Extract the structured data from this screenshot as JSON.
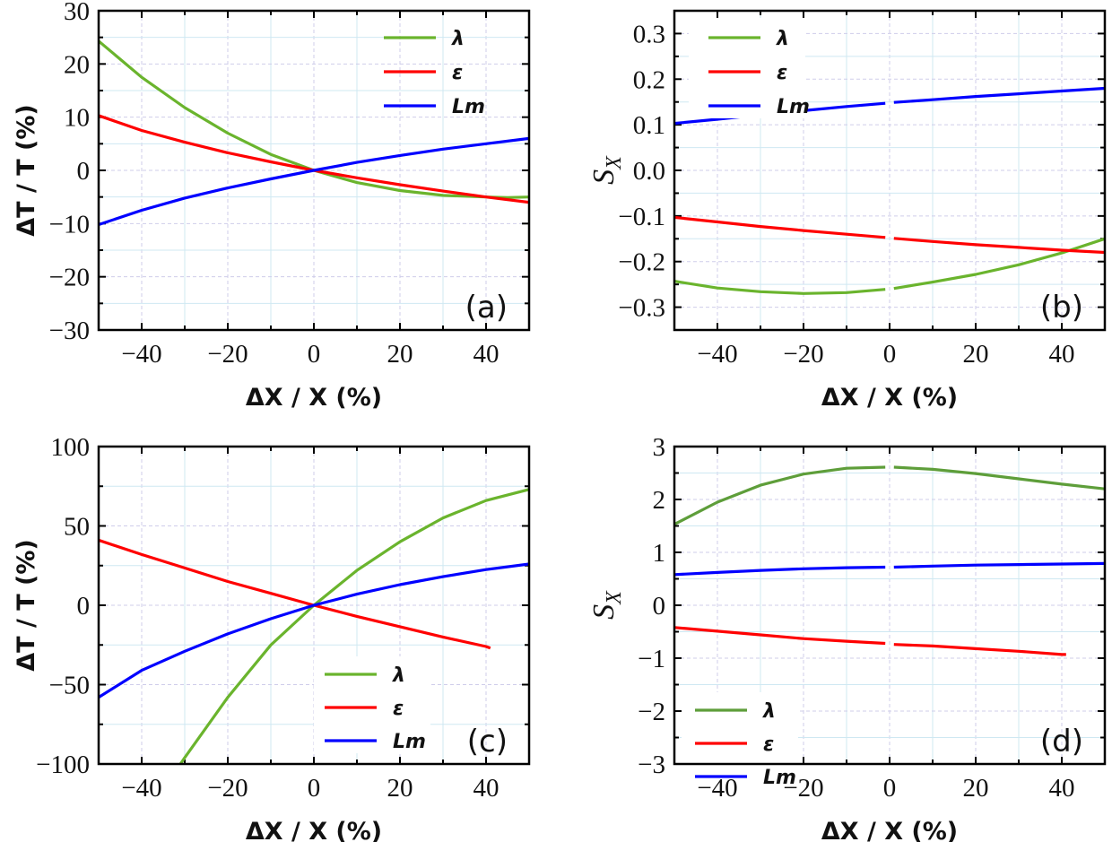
{
  "chart_data": [
    {
      "type": "line",
      "panel_label": "(a)",
      "xlabel": "ΔX / X (%)",
      "ylabel": "ΔT / T (%)",
      "xlim": [
        -50,
        50
      ],
      "ylim": [
        -30,
        30
      ],
      "xticks": [
        -40,
        -20,
        0,
        20,
        40
      ],
      "yticks": [
        -30,
        -20,
        -10,
        0,
        10,
        20,
        30
      ],
      "grid": true,
      "legend_position": "top-right",
      "series": [
        {
          "name": "λ",
          "color": "#6ab42d",
          "x": [
            -50,
            -40,
            -30,
            -20,
            -10,
            0,
            10,
            20,
            30,
            40,
            45,
            50
          ],
          "y": [
            24.3,
            17.5,
            11.8,
            7,
            3,
            0,
            -2.3,
            -3.8,
            -4.7,
            -5,
            -5.1,
            -5
          ]
        },
        {
          "name": "ε",
          "color": "#ff0000",
          "x": [
            -50,
            -40,
            -30,
            -20,
            -10,
            0,
            10,
            20,
            30,
            40,
            50
          ],
          "y": [
            10.3,
            7.5,
            5.3,
            3.3,
            1.6,
            0,
            -1.4,
            -2.7,
            -3.9,
            -5,
            -6
          ]
        },
        {
          "name": "Lm",
          "color": "#0000ff",
          "x": [
            -50,
            -40,
            -30,
            -20,
            -10,
            0,
            10,
            20,
            30,
            40,
            50
          ],
          "y": [
            -10.2,
            -7.5,
            -5.2,
            -3.3,
            -1.6,
            0,
            1.5,
            2.8,
            4,
            5,
            6
          ]
        }
      ]
    },
    {
      "type": "line",
      "panel_label": "(b)",
      "xlabel": "ΔX / X (%)",
      "ylabel": "S",
      "ylabel_sub": "X",
      "xlim": [
        -50,
        50
      ],
      "ylim": [
        -0.35,
        0.35
      ],
      "xticks": [
        -40,
        -20,
        0,
        20,
        40
      ],
      "yticks": [
        -0.3,
        -0.2,
        -0.1,
        0.0,
        0.1,
        0.2,
        0.3
      ],
      "grid": true,
      "legend_position": "top-left",
      "series": [
        {
          "name": "λ",
          "color": "#6ab42d",
          "x": [
            -50,
            -40,
            -30,
            -20,
            -10,
            -1,
            0,
            1,
            10,
            20,
            30,
            40,
            50
          ],
          "y": [
            -0.243,
            -0.258,
            -0.266,
            -0.27,
            -0.268,
            -0.261,
            null,
            -0.259,
            -0.245,
            -0.228,
            -0.207,
            -0.181,
            -0.15
          ]
        },
        {
          "name": "ε",
          "color": "#ff0000",
          "x": [
            -50,
            -40,
            -30,
            -20,
            -10,
            -1,
            0,
            1,
            10,
            20,
            30,
            40,
            50
          ],
          "y": [
            -0.103,
            -0.113,
            -0.123,
            -0.132,
            -0.14,
            -0.147,
            null,
            -0.149,
            -0.156,
            -0.163,
            -0.169,
            -0.175,
            -0.18
          ]
        },
        {
          "name": "Lm",
          "color": "#0000ff",
          "x": [
            -50,
            -40,
            -30,
            -20,
            -10,
            -1,
            0,
            1,
            10,
            20,
            30,
            40,
            50
          ],
          "y": [
            0.103,
            0.112,
            0.122,
            0.131,
            0.14,
            0.147,
            null,
            0.149,
            0.155,
            0.162,
            0.168,
            0.174,
            0.18
          ]
        }
      ]
    },
    {
      "type": "line",
      "panel_label": "(c)",
      "xlabel": "ΔX / X (%)",
      "ylabel": "ΔT / T (%)",
      "xlim": [
        -50,
        50
      ],
      "ylim": [
        -100,
        100
      ],
      "xticks": [
        -40,
        -20,
        0,
        20,
        40
      ],
      "yticks": [
        -100,
        -50,
        0,
        50,
        100
      ],
      "grid": true,
      "legend_position": "bottom-center",
      "series": [
        {
          "name": "λ",
          "color": "#6ab42d",
          "x": [
            -31,
            -30,
            -20,
            -10,
            0,
            10,
            20,
            30,
            40,
            50
          ],
          "y": [
            -100,
            -96,
            -58,
            -25,
            0,
            22,
            40,
            55,
            66,
            73
          ]
        },
        {
          "name": "ε",
          "color": "#ff0000",
          "x": [
            -50,
            -40,
            -30,
            -20,
            -10,
            0,
            10,
            20,
            30,
            40,
            41
          ],
          "y": [
            41,
            32,
            23.5,
            15,
            7.5,
            0,
            -7,
            -13.5,
            -20,
            -26,
            -27
          ]
        },
        {
          "name": "Lm",
          "color": "#0000ff",
          "x": [
            -50,
            -40,
            -30,
            -20,
            -10,
            0,
            10,
            20,
            30,
            40,
            50
          ],
          "y": [
            -58,
            -41,
            -29,
            -18,
            -8.5,
            0,
            7,
            13,
            18,
            22.5,
            26
          ]
        }
      ]
    },
    {
      "type": "line",
      "panel_label": "(d)",
      "xlabel": "ΔX / X (%)",
      "ylabel": "S",
      "ylabel_sub": "X",
      "xlim": [
        -50,
        50
      ],
      "ylim": [
        -3,
        3
      ],
      "xticks": [
        -40,
        -20,
        0,
        20,
        40
      ],
      "yticks": [
        -3,
        -2,
        -1,
        0,
        1,
        2,
        3
      ],
      "grid": true,
      "legend_position": "bottom-left",
      "series": [
        {
          "name": "λ",
          "color": "#5e9e3a",
          "x": [
            -50,
            -40,
            -30,
            -20,
            -10,
            -1,
            0,
            1,
            10,
            20,
            30,
            40,
            50
          ],
          "y": [
            1.53,
            1.95,
            2.27,
            2.48,
            2.59,
            2.61,
            null,
            2.61,
            2.57,
            2.49,
            2.39,
            2.29,
            2.2
          ]
        },
        {
          "name": "ε",
          "color": "#ff0000",
          "x": [
            -50,
            -40,
            -30,
            -20,
            -10,
            -1,
            0,
            1,
            10,
            20,
            30,
            40,
            41
          ],
          "y": [
            -0.42,
            -0.49,
            -0.56,
            -0.63,
            -0.68,
            -0.72,
            null,
            -0.74,
            -0.77,
            -0.82,
            -0.87,
            -0.93,
            -0.93
          ]
        },
        {
          "name": "Lm",
          "color": "#0000ff",
          "x": [
            -50,
            -40,
            -30,
            -20,
            -10,
            -1,
            0,
            1,
            10,
            20,
            30,
            40,
            50
          ],
          "y": [
            0.58,
            0.62,
            0.66,
            0.69,
            0.71,
            0.72,
            null,
            0.72,
            0.74,
            0.76,
            0.77,
            0.78,
            0.79
          ]
        }
      ]
    }
  ]
}
